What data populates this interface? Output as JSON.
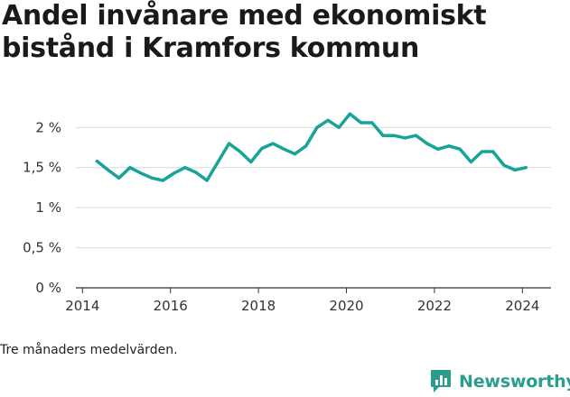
{
  "chart_data": {
    "type": "line",
    "title": "Andel invånare med ekonomiskt bistånd i Kramfors kommun",
    "xlabel": "",
    "ylabel": "",
    "xlim": [
      2013.85,
      2024.65
    ],
    "ylim": [
      0,
      2.15
    ],
    "y_ticks": [
      {
        "value": 0,
        "label": "0 %"
      },
      {
        "value": 0.5,
        "label": "0,5 %"
      },
      {
        "value": 1,
        "label": "1 %"
      },
      {
        "value": 1.5,
        "label": "1,5 %"
      },
      {
        "value": 2,
        "label": "2 %"
      }
    ],
    "x_ticks": [
      {
        "value": 2014,
        "label": "2014"
      },
      {
        "value": 2016,
        "label": "2016"
      },
      {
        "value": 2018,
        "label": "2018"
      },
      {
        "value": 2020,
        "label": "2020"
      },
      {
        "value": 2022,
        "label": "2022"
      },
      {
        "value": 2024,
        "label": "2024"
      }
    ],
    "grid": true,
    "line_color": "#17a398",
    "series": [
      {
        "x": [
          2014.33,
          2014.58,
          2014.83,
          2015.08,
          2015.33,
          2015.58,
          2015.83,
          2016.08,
          2016.33,
          2016.58,
          2016.83,
          2017.08,
          2017.33,
          2017.58,
          2017.83,
          2018.08,
          2018.33,
          2018.58,
          2018.83,
          2019.08,
          2019.33,
          2019.58,
          2019.83,
          2020.08,
          2020.33,
          2020.58,
          2020.83,
          2021.08,
          2021.33,
          2021.58,
          2021.83,
          2022.08,
          2022.33,
          2022.58,
          2022.83,
          2023.08,
          2023.33,
          2023.58,
          2023.83,
          2024.08
        ],
        "values": [
          1.58,
          1.47,
          1.37,
          1.5,
          1.43,
          1.37,
          1.34,
          1.43,
          1.5,
          1.44,
          1.34,
          1.57,
          1.8,
          1.7,
          1.57,
          1.74,
          1.8,
          1.73,
          1.67,
          1.77,
          2.0,
          2.09,
          2.0,
          2.17,
          2.06,
          2.06,
          1.9,
          1.9,
          1.87,
          1.9,
          1.8,
          1.73,
          1.77,
          1.73,
          1.57,
          1.7,
          1.7,
          1.53,
          1.47,
          1.5
        ]
      }
    ]
  },
  "caption": "Tre månaders medelvärden.",
  "brand": {
    "name": "Newsworthy",
    "icon": "bar-chart-logo-icon",
    "color": "#2a9d8f"
  }
}
